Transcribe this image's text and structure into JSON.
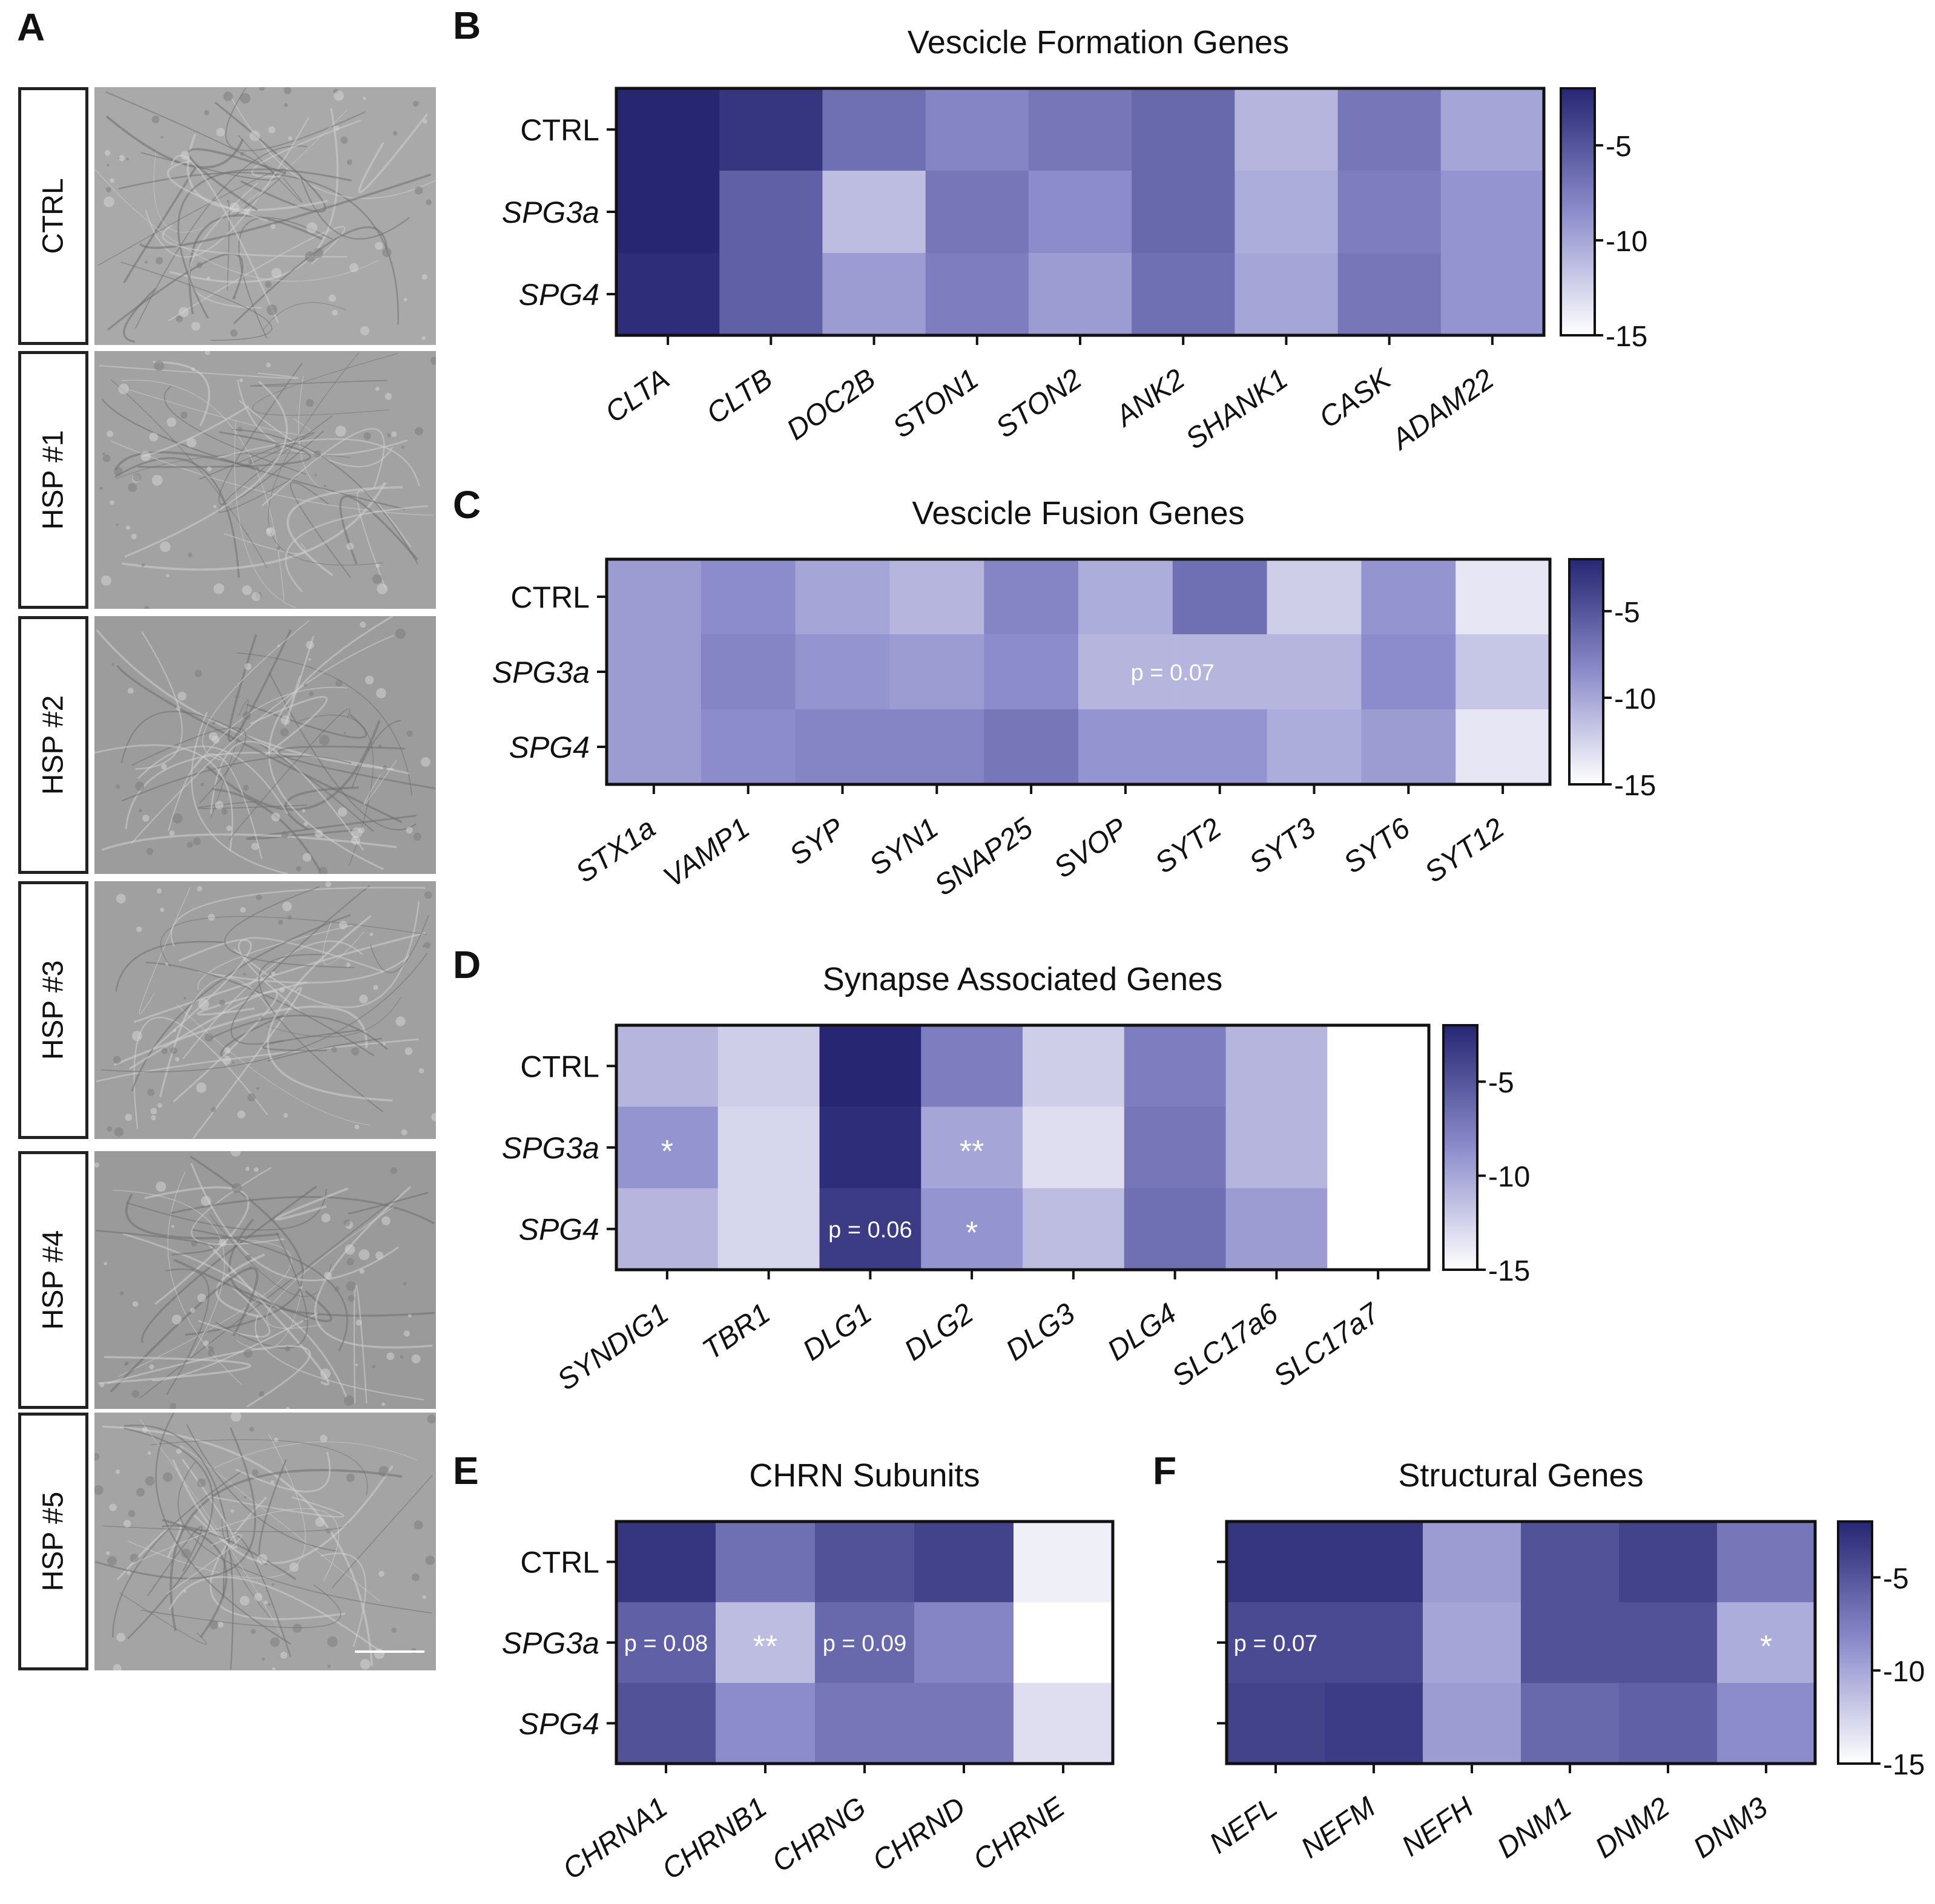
{
  "panel_a": {
    "letter": "A",
    "images": [
      {
        "label": "CTRL",
        "tone": "#a9a9a9"
      },
      {
        "label": "HSP #1",
        "tone": "#a2a2a2"
      },
      {
        "label": "HSP #2",
        "tone": "#9c9c9c"
      },
      {
        "label": "HSP #3",
        "tone": "#a0a0a0"
      },
      {
        "label": "HSP #4",
        "tone": "#9a9a9a"
      },
      {
        "label": "HSP #5",
        "tone": "#a4a4a4"
      }
    ]
  },
  "chart_data": [
    {
      "id": "B",
      "type": "heatmap",
      "letter": "B",
      "title": "Vescicle Formation Genes",
      "rows": [
        "CTRL",
        "SPG3a",
        "SPG4"
      ],
      "row_italic": [
        false,
        true,
        true
      ],
      "columns": [
        "CLTA",
        "CLTB",
        "DOC2B",
        "STON1",
        "STON2",
        "ANK2",
        "SHANK1",
        "CASK",
        "ADAM22"
      ],
      "values": [
        [
          -1.0,
          -2.0,
          -6.0,
          -7.5,
          -6.5,
          -5.5,
          -10.5,
          -6.5,
          -9.5
        ],
        [
          -1.0,
          -5.0,
          -11.0,
          -6.5,
          -8.0,
          -5.5,
          -10.0,
          -7.0,
          -8.5
        ],
        [
          -1.5,
          -5.0,
          -9.0,
          -7.0,
          -9.0,
          -6.0,
          -9.5,
          -6.5,
          -8.5
        ]
      ],
      "colorbar": {
        "min": -15,
        "max": -2,
        "ticks": [
          -5,
          -10,
          -15
        ],
        "tick_labels": [
          "-5",
          "-10",
          "-15"
        ]
      },
      "annotations": []
    },
    {
      "id": "C",
      "type": "heatmap",
      "letter": "C",
      "title": "Vescicle Fusion Genes",
      "rows": [
        "CTRL",
        "SPG3a",
        "SPG4"
      ],
      "row_italic": [
        false,
        true,
        true
      ],
      "columns": [
        "STX1a",
        "VAMP1",
        "SYP",
        "SYN1",
        "SNAP25",
        "SVOP",
        "SYT2",
        "SYT3",
        "SYT6",
        "SYT12"
      ],
      "values": [
        [
          -9.0,
          -8.0,
          -9.5,
          -10.5,
          -7.5,
          -10.0,
          -6.0,
          -12.0,
          -8.5,
          -13.5
        ],
        [
          -9.0,
          -7.5,
          -8.5,
          -9.0,
          -8.0,
          -10.5,
          -10.5,
          -10.5,
          -8.0,
          -11.5
        ],
        [
          -9.0,
          -8.0,
          -7.5,
          -7.5,
          -6.5,
          -8.5,
          -8.5,
          -10.0,
          -9.0,
          -13.5
        ]
      ],
      "colorbar": {
        "min": -15,
        "max": -2,
        "ticks": [
          -5,
          -10,
          -15
        ],
        "tick_labels": [
          "-5",
          "-10",
          "-15"
        ]
      },
      "annotations": [
        {
          "row": 1,
          "col_start": 5,
          "col_end": 7,
          "text": "p = 0.07"
        }
      ]
    },
    {
      "id": "D",
      "type": "heatmap",
      "letter": "D",
      "title": "Synapse Associated Genes",
      "rows": [
        "CTRL",
        "SPG3a",
        "SPG4"
      ],
      "row_italic": [
        false,
        true,
        true
      ],
      "columns": [
        "SYNDIG1",
        "TBR1",
        "DLG1",
        "DLG2",
        "DLG3",
        "DLG4",
        "SLC17a6",
        "SLC17a7"
      ],
      "values": [
        [
          -10.5,
          -12.0,
          -1.0,
          -7.0,
          -12.0,
          -7.0,
          -10.5,
          -15.0
        ],
        [
          -8.5,
          -12.5,
          -1.5,
          -9.5,
          -13.0,
          -6.5,
          -10.5,
          -15.0
        ],
        [
          -10.5,
          -12.5,
          -2.5,
          -8.5,
          -11.0,
          -6.0,
          -9.0,
          -15.0
        ]
      ],
      "colorbar": {
        "min": -15,
        "max": -2,
        "ticks": [
          -5,
          -10,
          -15
        ],
        "tick_labels": [
          "-5",
          "-10",
          "-15"
        ]
      },
      "annotations": [
        {
          "row": 1,
          "col_start": 0,
          "col_end": 1,
          "text": "*"
        },
        {
          "row": 1,
          "col_start": 3,
          "col_end": 4,
          "text": "**"
        },
        {
          "row": 2,
          "col_start": 2,
          "col_end": 3,
          "text": "p = 0.06"
        },
        {
          "row": 2,
          "col_start": 3,
          "col_end": 4,
          "text": "*"
        }
      ]
    },
    {
      "id": "E",
      "type": "heatmap",
      "letter": "E",
      "title": "CHRN Subunits",
      "rows": [
        "CTRL",
        "SPG3a",
        "SPG4"
      ],
      "row_italic": [
        false,
        true,
        true
      ],
      "columns": [
        "CHRNA1",
        "CHRNB1",
        "CHRNG",
        "CHRND",
        "CHRNE"
      ],
      "values": [
        [
          -2.0,
          -6.0,
          -4.0,
          -3.0,
          -14.0
        ],
        [
          -5.0,
          -11.0,
          -5.5,
          -7.5,
          -15.0
        ],
        [
          -4.0,
          -8.0,
          -6.5,
          -6.5,
          -13.0
        ]
      ],
      "colorbar": null,
      "annotations": [
        {
          "row": 1,
          "col_start": 0,
          "col_end": 1,
          "text": "p = 0.08"
        },
        {
          "row": 1,
          "col_start": 1,
          "col_end": 2,
          "text": "**"
        },
        {
          "row": 1,
          "col_start": 2,
          "col_end": 3,
          "text": "p = 0.09"
        }
      ]
    },
    {
      "id": "F",
      "type": "heatmap",
      "letter": "F",
      "title": "Structural Genes",
      "rows": [
        "CTRL",
        "SPG3a",
        "SPG4"
      ],
      "row_italic": [
        false,
        true,
        true
      ],
      "show_row_labels": false,
      "columns": [
        "NEFL",
        "NEFM",
        "NEFH",
        "DNM1",
        "DNM2",
        "DNM3"
      ],
      "values": [
        [
          -2.0,
          -2.0,
          -9.0,
          -4.0,
          -3.0,
          -6.5
        ],
        [
          -3.5,
          -3.5,
          -9.5,
          -4.0,
          -4.0,
          -10.0
        ],
        [
          -3.0,
          -2.5,
          -9.0,
          -5.5,
          -5.0,
          -8.0
        ]
      ],
      "colorbar": {
        "min": -15,
        "max": -2,
        "ticks": [
          -5,
          -10,
          -15
        ],
        "tick_labels": [
          "-5",
          "-10",
          "-15"
        ]
      },
      "annotations": [
        {
          "row": 1,
          "col_start": 0,
          "col_end": 1,
          "text": "p = 0.07"
        },
        {
          "row": 1,
          "col_start": 5,
          "col_end": 6,
          "text": "*"
        }
      ]
    }
  ],
  "colormap": {
    "low": "#ffffff",
    "mid": "#8c8ccc",
    "high": "#262673"
  }
}
